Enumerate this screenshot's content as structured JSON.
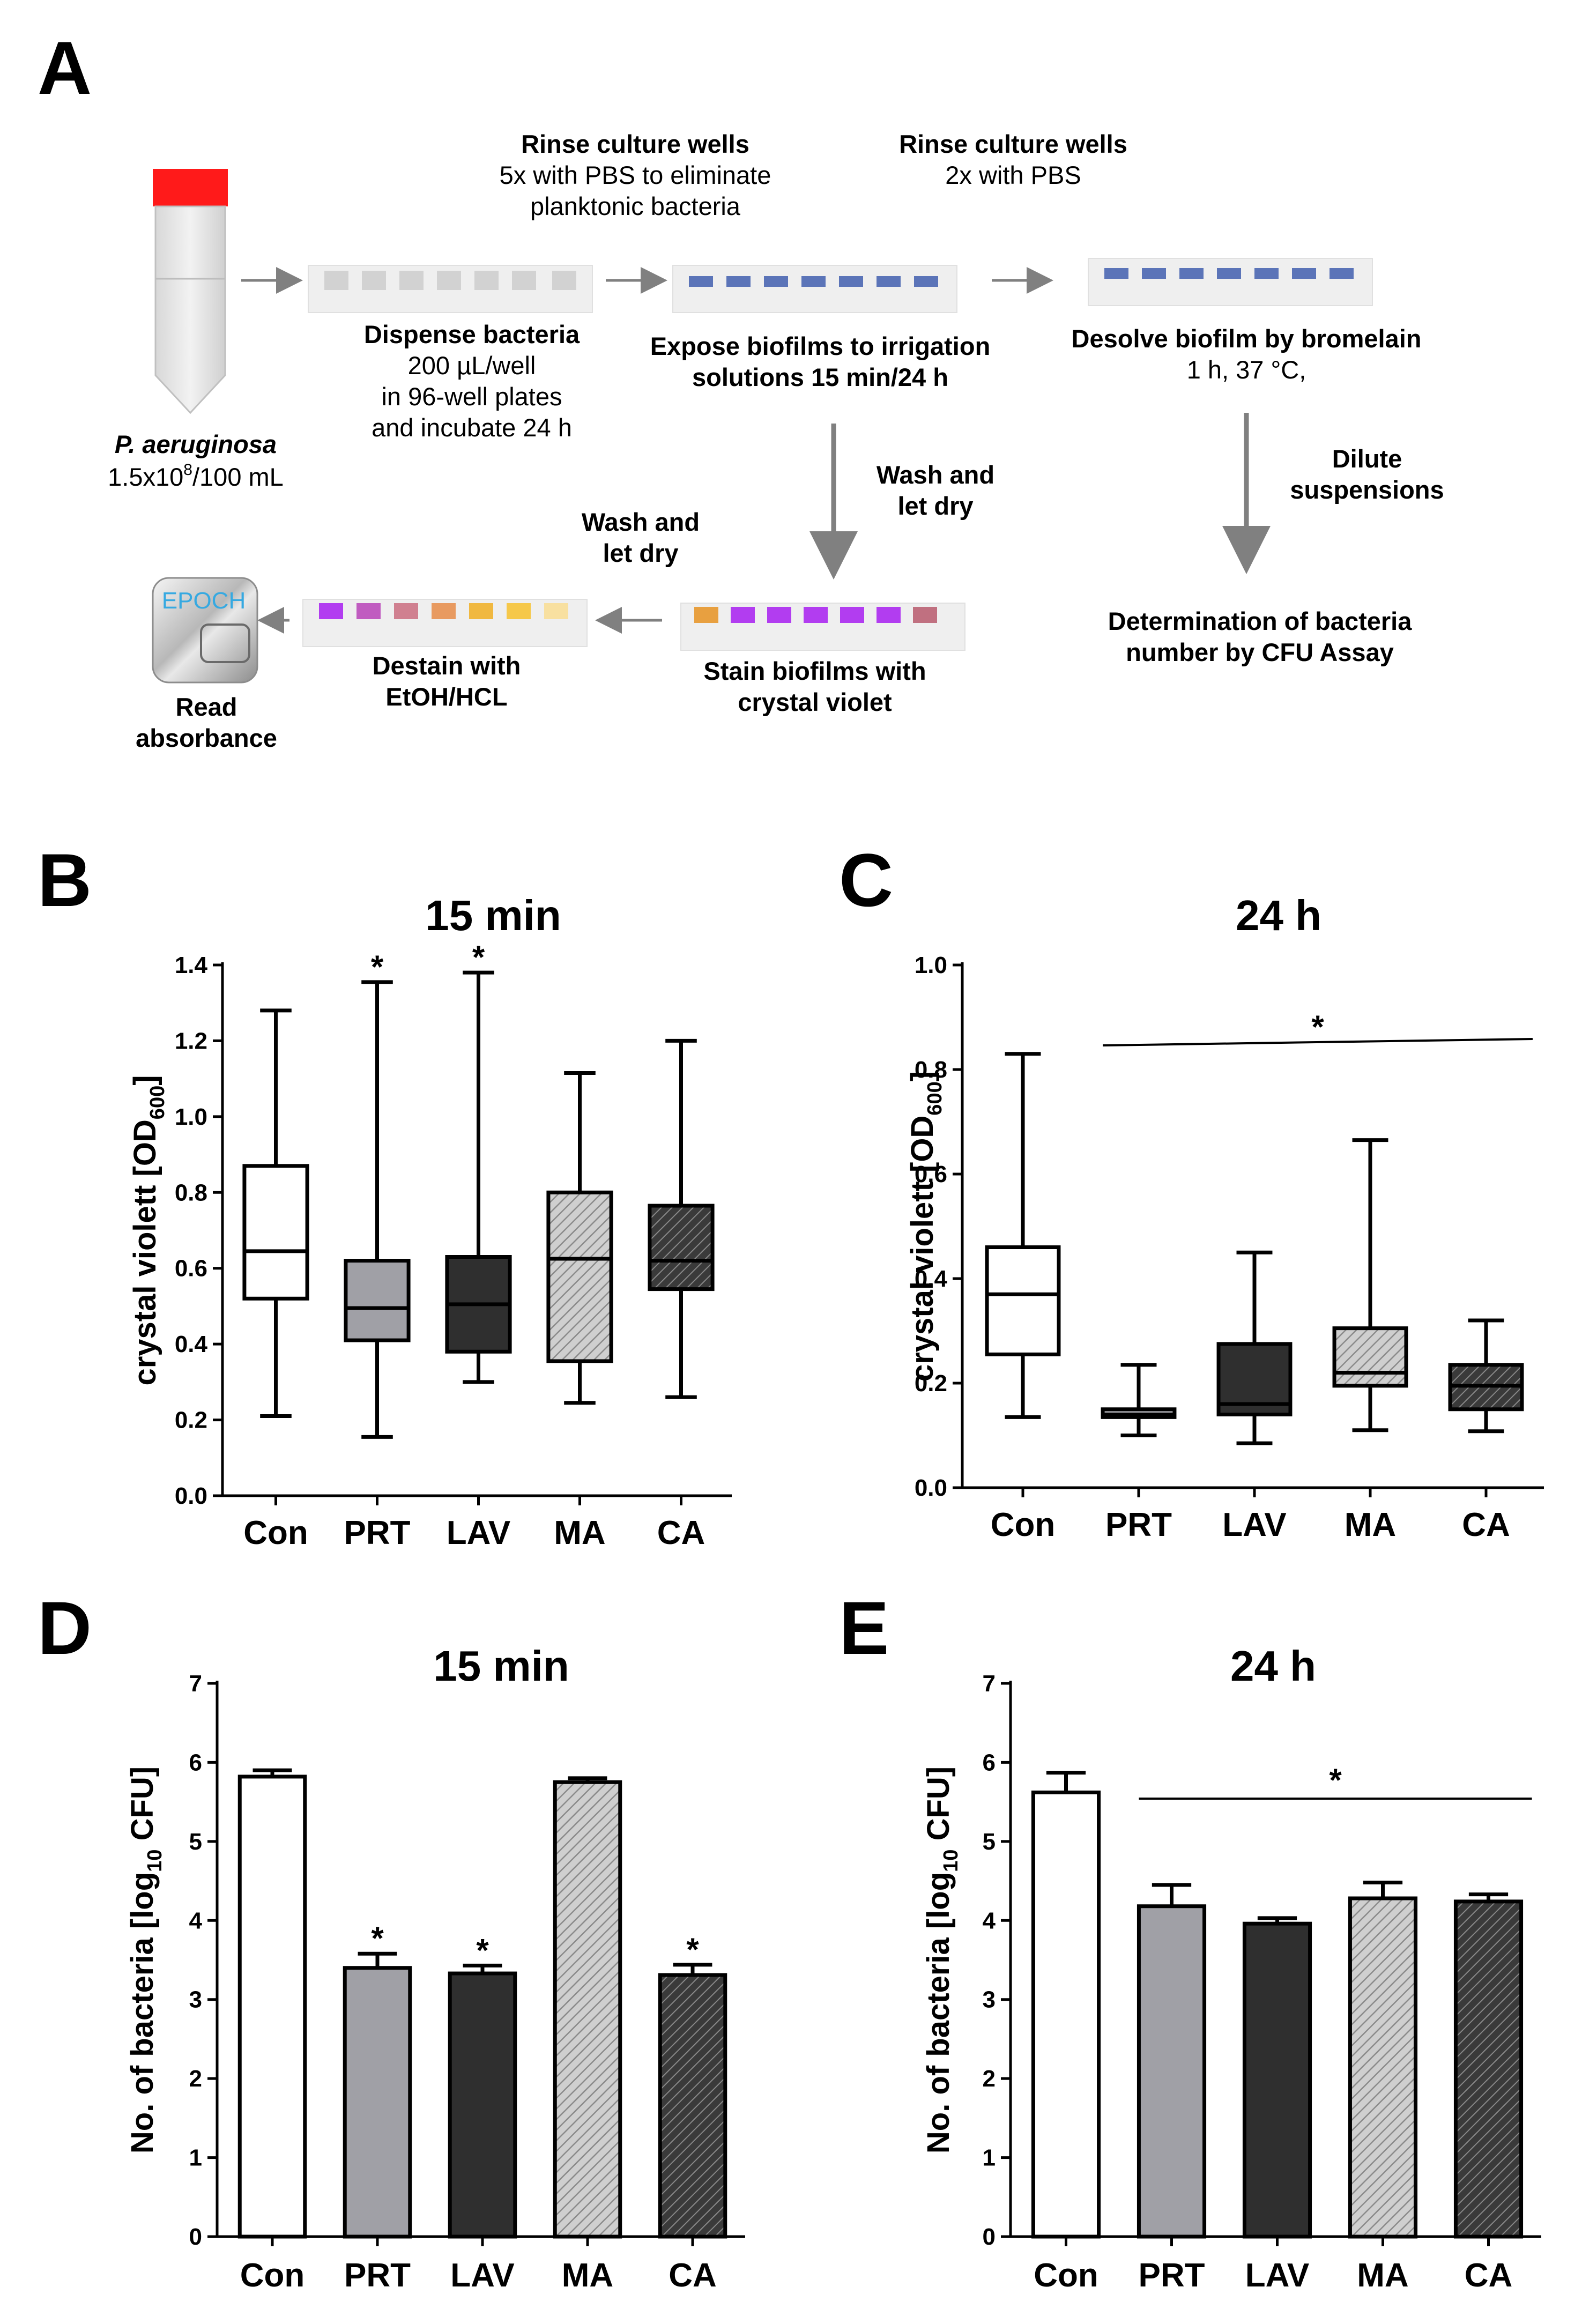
{
  "panel_labels": {
    "a": "A",
    "b": "B",
    "c": "C",
    "d": "D",
    "e": "E"
  },
  "colors": {
    "tube_cap": "#ff1a1a",
    "tube_body": "#eaeaea",
    "plate": "#efefef",
    "well_grey": "#d2d2d2",
    "well_blue": "#5b74b8",
    "violet": "#b23df0",
    "arrow": "#808080",
    "epoch_text": "#36a9e1",
    "prt_fill": "#a0a0a6",
    "lav_fill": "#2f2f2f",
    "ma_fill": "#c8c8c8",
    "ca_fill": "#474747"
  },
  "schematic": {
    "strain": "P. aeruginosa",
    "concentration_base": "1.5x10",
    "concentration_exp": "8",
    "concentration_tail": "/100 mL",
    "rinse1_title": "Rinse culture wells",
    "rinse1_line2": "5x with PBS to eliminate",
    "rinse1_line3": "planktonic bacteria",
    "rinse2_title": "Rinse culture wells",
    "rinse2_line2": "2x with PBS",
    "dispense_title": "Dispense bacteria",
    "dispense_line2": "200 µL/well",
    "dispense_line3": "in 96-well plates",
    "dispense_line4": "and incubate 24 h",
    "expose_line1": "Expose biofilms to irrigation",
    "expose_line2": "solutions 15 min/24 h",
    "desolve_line1": "Desolve biofilm by bromelain",
    "desolve_line2": "1 h, 37 °C,",
    "wash1_line1": "Wash and",
    "wash1_line2": "let dry",
    "wash2_line1": "Wash and",
    "wash2_line2": "let dry",
    "dilute_line1": "Dilute",
    "dilute_line2": "suspensions",
    "stain_line1": "Stain biofilms with",
    "stain_line2": "crystal violet",
    "destain_line1": "Destain with",
    "destain_line2": "EtOH/HCL",
    "read_line1": "Read",
    "read_line2": "absorbance",
    "epoch_label": "EPOCH",
    "cfu_line1": "Determination of bacteria",
    "cfu_line2": "number by CFU Assay"
  },
  "chart_data": [
    {
      "panel": "B",
      "type": "box",
      "title": "15 min",
      "ylabel_main": "crystal violett [OD",
      "ylabel_sub": "600",
      "ylabel_end": "]",
      "ylim": [
        0.0,
        1.4
      ],
      "yticks": [
        "0.0",
        "0.2",
        "0.4",
        "0.6",
        "0.8",
        "1.0",
        "1.2",
        "1.4"
      ],
      "categories": [
        "Con",
        "PRT",
        "LAV",
        "MA",
        "CA"
      ],
      "boxes": [
        {
          "name": "Con",
          "min": 0.21,
          "q1": 0.52,
          "median": 0.645,
          "q3": 0.87,
          "max": 1.28
        },
        {
          "name": "PRT",
          "min": 0.155,
          "q1": 0.41,
          "median": 0.495,
          "q3": 0.62,
          "max": 1.355
        },
        {
          "name": "LAV",
          "min": 0.3,
          "q1": 0.38,
          "median": 0.505,
          "q3": 0.63,
          "max": 1.38
        },
        {
          "name": "MA",
          "min": 0.245,
          "q1": 0.355,
          "median": 0.625,
          "q3": 0.8,
          "max": 1.115
        },
        {
          "name": "CA",
          "min": 0.26,
          "q1": 0.545,
          "median": 0.62,
          "q3": 0.765,
          "max": 1.2
        }
      ],
      "significance_marks": [
        {
          "category": "PRT",
          "text": "*"
        },
        {
          "category": "LAV",
          "text": "*"
        }
      ]
    },
    {
      "panel": "C",
      "type": "box",
      "title": "24 h",
      "ylabel_main": "crystal violett [OD",
      "ylabel_sub": "600",
      "ylabel_end": "]",
      "ylim": [
        0.0,
        1.0
      ],
      "yticks": [
        "0.0",
        "0.2",
        "0.4",
        "0.6",
        "0.8",
        "1.0"
      ],
      "categories": [
        "Con",
        "PRT",
        "LAV",
        "MA",
        "CA"
      ],
      "boxes": [
        {
          "name": "Con",
          "min": 0.135,
          "q1": 0.255,
          "median": 0.37,
          "q3": 0.46,
          "max": 0.83
        },
        {
          "name": "PRT",
          "min": 0.1,
          "q1": 0.135,
          "median": 0.14,
          "q3": 0.15,
          "max": 0.235
        },
        {
          "name": "LAV",
          "min": 0.085,
          "q1": 0.14,
          "median": 0.16,
          "q3": 0.275,
          "max": 0.45
        },
        {
          "name": "MA",
          "min": 0.11,
          "q1": 0.195,
          "median": 0.22,
          "q3": 0.305,
          "max": 0.665
        },
        {
          "name": "CA",
          "min": 0.108,
          "q1": 0.15,
          "median": 0.195,
          "q3": 0.235,
          "max": 0.32
        }
      ],
      "significance_line": {
        "from": "PRT",
        "to": "CA",
        "text": "*"
      }
    },
    {
      "panel": "D",
      "type": "bar",
      "title": "15 min",
      "ylabel_main": "No. of bacteria [log",
      "ylabel_sub": "10",
      "ylabel_end": " CFU]",
      "ylim": [
        0,
        7
      ],
      "yticks": [
        "0",
        "1",
        "2",
        "3",
        "4",
        "5",
        "6",
        "7"
      ],
      "categories": [
        "Con",
        "PRT",
        "LAV",
        "MA",
        "CA"
      ],
      "values": [
        5.82,
        3.4,
        3.33,
        5.75,
        3.31
      ],
      "errors": [
        0.08,
        0.18,
        0.1,
        0.05,
        0.13
      ],
      "significance_marks": [
        {
          "category": "PRT",
          "text": "*"
        },
        {
          "category": "LAV",
          "text": "*"
        },
        {
          "category": "CA",
          "text": "*"
        }
      ]
    },
    {
      "panel": "E",
      "type": "bar",
      "title": "24 h",
      "ylabel_main": "No. of bacteria [log",
      "ylabel_sub": "10",
      "ylabel_end": " CFU]",
      "ylim": [
        0,
        7
      ],
      "yticks": [
        "0",
        "1",
        "2",
        "3",
        "4",
        "5",
        "6",
        "7"
      ],
      "categories": [
        "Con",
        "PRT",
        "LAV",
        "MA",
        "CA"
      ],
      "values": [
        5.62,
        4.18,
        3.96,
        4.28,
        4.24
      ],
      "errors": [
        0.25,
        0.27,
        0.07,
        0.2,
        0.09
      ],
      "significance_line": {
        "from": "PRT",
        "to": "CA",
        "text": "*"
      }
    }
  ]
}
